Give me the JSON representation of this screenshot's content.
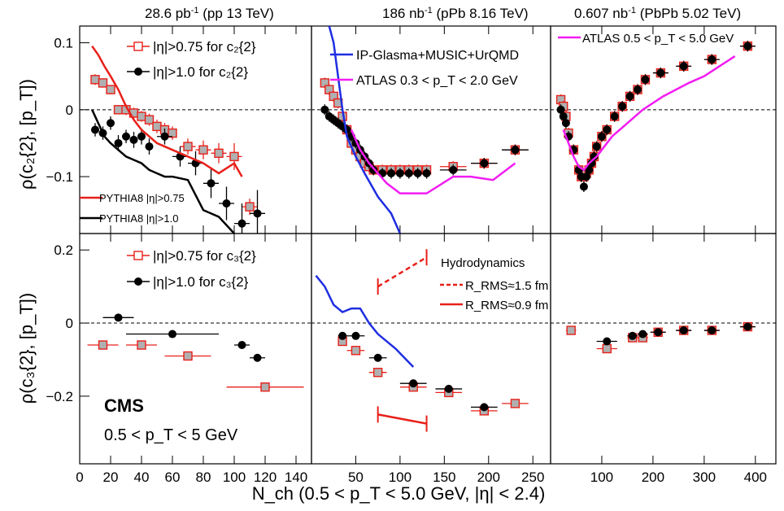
{
  "header": {
    "titles": [
      {
        "main": "28.6 pb",
        "sup": "-1",
        "tail": " (pp 13 TeV)"
      },
      {
        "main": "186 nb",
        "sup": "-1",
        "tail": " (pPb 8.16 TeV)"
      },
      {
        "main": "0.607 nb",
        "sup": "-1",
        "tail": " (PbPb 5.02 TeV)"
      }
    ]
  },
  "axes": {
    "ylabel_top": "ρ(c₂{2}, [p_T])",
    "ylabel_bottom": "ρ(c₃{2}, [p_T])",
    "xlabel": "N_ch (0.5 < p_T < 5.0 GeV, |η| < 2.4)"
  },
  "cms": {
    "label": "CMS",
    "range": "0.5 < p_T < 5 GeV"
  },
  "colors": {
    "data_open": "#e8201a",
    "data_fill": "#b0b0b0",
    "data_closed": "#000000",
    "model": "#1f2ee0",
    "atlas": "#f21cf2",
    "pythia_a": "#e8201a",
    "pythia_b": "#000000"
  },
  "chart_data": [
    {
      "type": "scatter",
      "panel": "pp 13 TeV, c2",
      "xlim": [
        0,
        150
      ],
      "ylim": [
        -0.185,
        0.125
      ],
      "xticks": [
        "0",
        "20",
        "40",
        "60",
        "80",
        "100",
        "120",
        "140"
      ],
      "yticks": [
        "−0.1",
        "0",
        "0.1"
      ],
      "legend": [
        "|η|>0.75 for c₂{2}",
        "|η|>1.0 for c₂{2}",
        "PYTHIA8 |η|>0.75",
        "PYTHIA8 |η|>1.0"
      ],
      "series": [
        {
          "name": "|η|>0.75 for c₂{2}",
          "marker": "open-square",
          "x": [
            10,
            15,
            20,
            25,
            30,
            35,
            40,
            45,
            50,
            55,
            60,
            70,
            80,
            90,
            100,
            110
          ],
          "y": [
            0.045,
            0.04,
            0.03,
            0.0,
            0.0,
            -0.005,
            -0.01,
            -0.015,
            -0.025,
            -0.03,
            -0.035,
            -0.055,
            -0.06,
            -0.065,
            -0.07,
            -0.145
          ],
          "xerr": [
            2.5,
            2.5,
            2.5,
            2.5,
            2.5,
            2.5,
            2.5,
            2.5,
            2.5,
            2.5,
            2.5,
            5,
            5,
            5,
            5,
            5
          ],
          "yerr": [
            0.008,
            0.007,
            0.007,
            0.007,
            0.008,
            0.008,
            0.008,
            0.009,
            0.01,
            0.01,
            0.01,
            0.012,
            0.014,
            0.015,
            0.02,
            0.012
          ]
        },
        {
          "name": "|η|>1.0 for c₂{2}",
          "marker": "filled-circle",
          "x": [
            10,
            15,
            20,
            25,
            30,
            35,
            40,
            45,
            55,
            65,
            75,
            85,
            95,
            105,
            115
          ],
          "y": [
            -0.03,
            -0.035,
            -0.02,
            -0.05,
            -0.04,
            -0.045,
            -0.04,
            -0.055,
            -0.04,
            -0.07,
            -0.08,
            -0.11,
            -0.14,
            -0.17,
            -0.155
          ],
          "xerr": [
            2.5,
            2.5,
            2.5,
            2.5,
            2.5,
            2.5,
            2.5,
            2.5,
            5,
            5,
            5,
            5,
            5,
            5,
            5
          ],
          "yerr": [
            0.01,
            0.01,
            0.01,
            0.012,
            0.01,
            0.012,
            0.012,
            0.012,
            0.012,
            0.015,
            0.018,
            0.022,
            0.025,
            0.03,
            0.035
          ]
        },
        {
          "name": "PYTHIA8 |η|>0.75",
          "marker": "line",
          "x": [
            8,
            12,
            16,
            20,
            25,
            30,
            35,
            40,
            45,
            50,
            55,
            60,
            70,
            80,
            90,
            100,
            105
          ],
          "y": [
            0.095,
            0.082,
            0.065,
            0.05,
            0.03,
            0.005,
            -0.015,
            -0.03,
            -0.04,
            -0.05,
            -0.055,
            -0.06,
            -0.07,
            -0.08,
            -0.095,
            -0.08,
            -0.1
          ]
        },
        {
          "name": "PYTHIA8 |η|>1.0",
          "marker": "line",
          "x": [
            8,
            12,
            16,
            20,
            25,
            30,
            35,
            40,
            45,
            50,
            55,
            60,
            70,
            80,
            90,
            100
          ],
          "y": [
            0.0,
            -0.02,
            -0.04,
            -0.05,
            -0.06,
            -0.07,
            -0.075,
            -0.08,
            -0.09,
            -0.095,
            -0.1,
            -0.1,
            -0.105,
            -0.15,
            -0.16,
            -0.185
          ]
        }
      ]
    },
    {
      "type": "scatter",
      "panel": "pPb 8.16 TeV, c2",
      "xlim": [
        0,
        270
      ],
      "ylim": [
        -0.185,
        0.125
      ],
      "xticks": [
        "50",
        "100",
        "150",
        "200",
        "250"
      ],
      "legend": [
        "IP-Glasma+MUSIC+UrQMD",
        "ATLAS 0.3 < p_T < 2.0 GeV"
      ],
      "series": [
        {
          "name": "|η|>0.75 for c₂{2}",
          "marker": "open-square",
          "x": [
            15,
            20,
            25,
            30,
            35,
            40,
            45,
            50,
            55,
            60,
            65,
            70,
            80,
            90,
            100,
            110,
            120,
            130,
            160,
            195,
            230
          ],
          "y": [
            0.04,
            0.03,
            0.02,
            0.01,
            -0.01,
            -0.03,
            -0.05,
            -0.06,
            -0.07,
            -0.08,
            -0.085,
            -0.09,
            -0.09,
            -0.09,
            -0.09,
            -0.09,
            -0.09,
            -0.09,
            -0.085,
            -0.08,
            -0.06
          ],
          "xerr": [
            2.5,
            2.5,
            2.5,
            2.5,
            2.5,
            2.5,
            2.5,
            2.5,
            2.5,
            2.5,
            2.5,
            2.5,
            5,
            5,
            5,
            5,
            5,
            5,
            15,
            15,
            15
          ]
        },
        {
          "name": "|η|>1.0 for c₂{2}",
          "marker": "filled-circle",
          "x": [
            15,
            20,
            25,
            30,
            35,
            40,
            45,
            50,
            55,
            60,
            65,
            70,
            80,
            90,
            100,
            110,
            120,
            130,
            160,
            195,
            230
          ],
          "y": [
            0.0,
            -0.01,
            -0.015,
            -0.02,
            -0.025,
            -0.03,
            -0.04,
            -0.05,
            -0.06,
            -0.07,
            -0.08,
            -0.09,
            -0.095,
            -0.095,
            -0.095,
            -0.095,
            -0.095,
            -0.095,
            -0.09,
            -0.08,
            -0.06
          ],
          "xerr": [
            2.5,
            2.5,
            2.5,
            2.5,
            2.5,
            2.5,
            2.5,
            2.5,
            2.5,
            2.5,
            2.5,
            2.5,
            5,
            5,
            5,
            5,
            5,
            5,
            15,
            15,
            15
          ]
        },
        {
          "name": "IP-Glasma+MUSIC+UrQMD",
          "marker": "line",
          "x": [
            20,
            25,
            30,
            35,
            40,
            50,
            60,
            75,
            90,
            100
          ],
          "y": [
            0.125,
            0.1,
            0.05,
            0.0,
            -0.04,
            -0.07,
            -0.095,
            -0.13,
            -0.155,
            -0.185
          ]
        },
        {
          "name": "ATLAS 0.3 < p_T < 2.0 GeV",
          "marker": "line",
          "x": [
            45,
            55,
            65,
            75,
            85,
            100,
            130,
            160,
            180,
            205,
            230
          ],
          "y": [
            -0.03,
            -0.06,
            -0.08,
            -0.095,
            -0.11,
            -0.125,
            -0.125,
            -0.1,
            -0.1,
            -0.105,
            -0.08
          ]
        }
      ]
    },
    {
      "type": "scatter",
      "panel": "PbPb 5.02 TeV, c2",
      "xlim": [
        0,
        440
      ],
      "ylim": [
        -0.185,
        0.125
      ],
      "xticks": [
        "100",
        "200",
        "300",
        "400"
      ],
      "legend": [
        "ATLAS 0.5 < p_T < 5.0 GeV"
      ],
      "series": [
        {
          "name": "|η|>0.75 for c₂{2}",
          "marker": "open-square",
          "x": [
            20,
            25,
            30,
            35,
            45,
            55,
            60,
            65,
            70,
            75,
            80,
            85,
            90,
            100,
            110,
            125,
            140,
            155,
            170,
            185,
            215,
            260,
            315,
            385
          ],
          "y": [
            0.015,
            0.005,
            -0.01,
            -0.035,
            -0.06,
            -0.09,
            -0.1,
            -0.1,
            -0.095,
            -0.09,
            -0.08,
            -0.07,
            -0.055,
            -0.04,
            -0.03,
            -0.01,
            0.005,
            0.02,
            0.03,
            0.045,
            0.055,
            0.065,
            0.075,
            0.095
          ],
          "xerr": [
            2.5,
            2.5,
            2.5,
            2.5,
            2.5,
            2.5,
            2.5,
            2.5,
            2.5,
            2.5,
            2.5,
            2.5,
            2.5,
            5,
            5,
            5,
            5,
            5,
            5,
            5,
            15,
            15,
            15,
            15
          ]
        },
        {
          "name": "|η|>1.0 for c₂{2}",
          "marker": "filled-circle",
          "x": [
            20,
            25,
            30,
            35,
            45,
            55,
            60,
            65,
            70,
            75,
            80,
            85,
            90,
            100,
            110,
            125,
            140,
            155,
            170,
            185,
            215,
            260,
            315,
            385
          ],
          "y": [
            0.0,
            -0.01,
            -0.02,
            -0.04,
            -0.06,
            -0.09,
            -0.1,
            -0.115,
            -0.1,
            -0.09,
            -0.08,
            -0.07,
            -0.055,
            -0.04,
            -0.03,
            -0.01,
            0.005,
            0.02,
            0.03,
            0.045,
            0.055,
            0.065,
            0.075,
            0.095
          ],
          "xerr": [
            2.5,
            2.5,
            2.5,
            2.5,
            2.5,
            2.5,
            2.5,
            2.5,
            2.5,
            2.5,
            2.5,
            2.5,
            2.5,
            5,
            5,
            5,
            5,
            5,
            5,
            5,
            15,
            15,
            15,
            15
          ]
        },
        {
          "name": "ATLAS 0.5 < p_T < 5.0 GeV",
          "marker": "line",
          "x": [
            25,
            35,
            45,
            55,
            65,
            75,
            90,
            105,
            120,
            135,
            150,
            165,
            180,
            200,
            220,
            245,
            270,
            300,
            330,
            360
          ],
          "y": [
            -0.03,
            -0.05,
            -0.07,
            -0.085,
            -0.09,
            -0.08,
            -0.07,
            -0.055,
            -0.04,
            -0.03,
            -0.02,
            -0.01,
            0.0,
            0.01,
            0.02,
            0.03,
            0.04,
            0.05,
            0.065,
            0.08
          ]
        }
      ]
    },
    {
      "type": "scatter",
      "panel": "pp 13 TeV, c3",
      "xlim": [
        0,
        150
      ],
      "ylim": [
        -0.385,
        0.245
      ],
      "xticks": [
        "0",
        "20",
        "40",
        "60",
        "80",
        "100",
        "120",
        "140"
      ],
      "yticks": [
        "−0.2",
        "0",
        "0.2"
      ],
      "legend": [
        "|η|>0.75 for c₃{2}",
        "|η|>1.0 for c₃{2}"
      ],
      "series": [
        {
          "name": "|η|>0.75 for c₃{2}",
          "marker": "open-square",
          "x": [
            15,
            40,
            70,
            120
          ],
          "y": [
            -0.06,
            -0.06,
            -0.09,
            -0.175
          ],
          "xerr": [
            10,
            10,
            15,
            25
          ]
        },
        {
          "name": "|η|>1.0 for c₃{2}",
          "marker": "filled-circle",
          "x": [
            25,
            60,
            105,
            115
          ],
          "y": [
            0.015,
            -0.03,
            -0.06,
            -0.095
          ],
          "xerr": [
            10,
            30,
            5,
            5
          ]
        }
      ]
    },
    {
      "type": "scatter",
      "panel": "pPb 8.16 TeV, c3",
      "xlim": [
        0,
        270
      ],
      "ylim": [
        -0.385,
        0.245
      ],
      "xticks": [
        "50",
        "100",
        "150",
        "200",
        "250"
      ],
      "legend": [
        "Hydrodynamics",
        "R_RMS≈1.5 fm",
        "R_RMS≈0.9 fm"
      ],
      "series": [
        {
          "name": "|η|>0.75 for c₃{2}",
          "marker": "open-square",
          "x": [
            35,
            50,
            75,
            115,
            155,
            195,
            230
          ],
          "y": [
            -0.05,
            -0.075,
            -0.135,
            -0.175,
            -0.19,
            -0.24,
            -0.22
          ],
          "xerr": [
            5,
            10,
            10,
            15,
            15,
            15,
            15
          ]
        },
        {
          "name": "|η|>1.0 for c₃{2}",
          "marker": "filled-circle",
          "x": [
            35,
            50,
            75,
            115,
            155,
            195
          ],
          "y": [
            -0.035,
            -0.035,
            -0.095,
            -0.165,
            -0.18,
            -0.23
          ],
          "xerr": [
            5,
            10,
            10,
            15,
            15,
            15
          ]
        },
        {
          "name": "IP-Glasma+MUSIC+UrQMD",
          "marker": "line",
          "x": [
            5,
            15,
            25,
            35,
            45,
            55,
            65,
            75,
            95,
            115
          ],
          "y": [
            0.13,
            0.1,
            0.05,
            0.03,
            0.04,
            0.04,
            0.0,
            -0.03,
            -0.07,
            -0.12
          ]
        },
        {
          "name": "R_RMS≈1.5 fm",
          "marker": "dashed-line",
          "x": [
            75,
            130
          ],
          "y": [
            0.1,
            0.18
          ]
        },
        {
          "name": "R_RMS≈0.9 fm",
          "marker": "line",
          "x": [
            75,
            130
          ],
          "y": [
            -0.25,
            -0.275
          ]
        }
      ]
    },
    {
      "type": "scatter",
      "panel": "PbPb 5.02 TeV, c3",
      "xlim": [
        0,
        440
      ],
      "ylim": [
        -0.385,
        0.245
      ],
      "xticks": [
        "100",
        "200",
        "300",
        "400"
      ],
      "series": [
        {
          "name": "|η|>0.75 for c₃{2}",
          "marker": "open-square",
          "x": [
            40,
            110,
            160,
            180,
            210,
            260,
            315,
            385
          ],
          "y": [
            -0.02,
            -0.07,
            -0.04,
            -0.04,
            -0.025,
            -0.02,
            -0.02,
            -0.01
          ],
          "xerr": [
            10,
            20,
            10,
            10,
            15,
            15,
            15,
            15
          ]
        },
        {
          "name": "|η|>1.0 for c₃{2}",
          "marker": "filled-circle",
          "x": [
            110,
            160,
            180,
            210,
            260,
            315,
            385
          ],
          "y": [
            -0.05,
            -0.035,
            -0.03,
            -0.025,
            -0.02,
            -0.02,
            -0.01
          ],
          "xerr": [
            20,
            10,
            10,
            15,
            15,
            15,
            15
          ]
        }
      ]
    }
  ]
}
